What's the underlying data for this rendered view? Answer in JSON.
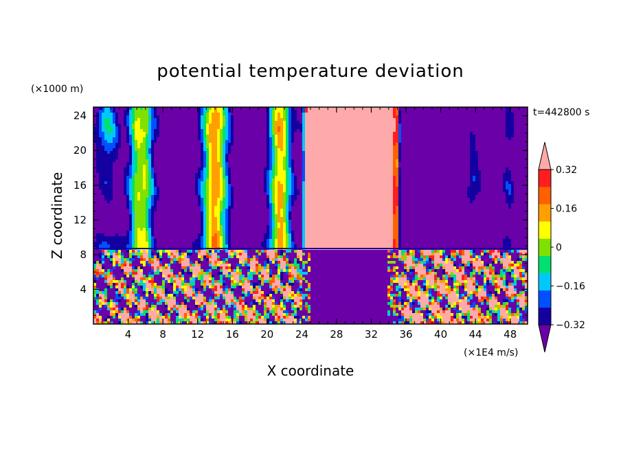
{
  "chart_data": {
    "type": "heatmap",
    "title": "potential temperature deviation",
    "xlabel": "X coordinate",
    "ylabel": "Z coordinate",
    "x_unit": "(×1E4 m/s)",
    "y_unit": "(×1000 m)",
    "time_label": "t=442800 s",
    "xlim": [
      0,
      50
    ],
    "ylim": [
      0,
      25
    ],
    "x_ticks": [
      4,
      8,
      12,
      16,
      20,
      24,
      28,
      32,
      36,
      40,
      44,
      48
    ],
    "y_ticks": [
      4,
      8,
      12,
      16,
      20,
      24
    ],
    "colorbar": {
      "levels": [
        -0.4,
        -0.32,
        -0.24,
        -0.16,
        -0.08,
        0,
        0.08,
        0.16,
        0.24,
        0.32,
        0.4
      ],
      "tick_labels": [
        "0.32",
        "0.16",
        "0",
        "−0.16",
        "−0.32"
      ],
      "tick_values": [
        0.32,
        0.16,
        0,
        -0.16,
        -0.32
      ],
      "colors": [
        "#6a00a8",
        "#1400a0",
        "#0050ff",
        "#00c8ff",
        "#00e070",
        "#80e000",
        "#ffff00",
        "#ffa000",
        "#ff6000",
        "#ff1e1e",
        "#ffaaaa"
      ],
      "extend": "both"
    },
    "features": {
      "boundary_height": 8.7,
      "upper_columns": [
        {
          "x_center": 5.5,
          "peak": 0.3
        },
        {
          "x_center": 14.0,
          "peak": 0.35
        },
        {
          "x_center": 21.5,
          "peak": 0.35
        },
        {
          "x_center": 29.5,
          "peak": 0.45
        }
      ],
      "lower_turbulent_regions": [
        [
          0,
          24
        ],
        [
          35,
          50
        ]
      ],
      "lower_calm_region": [
        24,
        35
      ],
      "negative_columns": [
        [
          2.5,
          3.5
        ],
        [
          9,
          11
        ],
        [
          17,
          19
        ],
        [
          42,
          45
        ],
        [
          47,
          48.5
        ]
      ]
    }
  }
}
